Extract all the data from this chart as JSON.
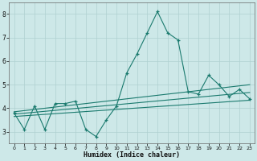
{
  "x": [
    0,
    1,
    2,
    3,
    4,
    5,
    6,
    7,
    8,
    9,
    10,
    11,
    12,
    13,
    14,
    15,
    16,
    17,
    18,
    19,
    20,
    21,
    22,
    23
  ],
  "y_main": [
    3.8,
    3.1,
    4.1,
    3.1,
    4.2,
    4.2,
    4.3,
    3.1,
    2.8,
    3.5,
    4.1,
    5.5,
    6.3,
    7.2,
    8.1,
    7.2,
    6.9,
    4.7,
    4.6,
    5.4,
    5.0,
    4.5,
    4.8,
    4.4
  ],
  "y_upper": [
    3.85,
    3.9,
    3.95,
    4.0,
    4.05,
    4.1,
    4.15,
    4.2,
    4.25,
    4.3,
    4.35,
    4.4,
    4.45,
    4.5,
    4.55,
    4.6,
    4.65,
    4.7,
    4.75,
    4.8,
    4.85,
    4.9,
    4.95,
    5.0
  ],
  "y_lower": [
    3.65,
    3.68,
    3.71,
    3.74,
    3.77,
    3.8,
    3.83,
    3.86,
    3.89,
    3.92,
    3.95,
    3.98,
    4.01,
    4.04,
    4.07,
    4.1,
    4.13,
    4.16,
    4.19,
    4.22,
    4.25,
    4.28,
    4.31,
    4.34
  ],
  "y_mid": [
    3.75,
    3.79,
    3.83,
    3.87,
    3.91,
    3.95,
    3.99,
    4.03,
    4.07,
    4.11,
    4.15,
    4.19,
    4.23,
    4.27,
    4.31,
    4.35,
    4.39,
    4.43,
    4.47,
    4.51,
    4.55,
    4.59,
    4.63,
    4.67
  ],
  "line_color": "#1a7a6e",
  "bg_color": "#cde8e8",
  "grid_color": "#afd0d0",
  "xlabel": "Humidex (Indice chaleur)",
  "ylim": [
    2.5,
    8.5
  ],
  "xlim": [
    -0.5,
    23.5
  ],
  "yticks": [
    3,
    4,
    5,
    6,
    7,
    8
  ],
  "xticks": [
    0,
    1,
    2,
    3,
    4,
    5,
    6,
    7,
    8,
    9,
    10,
    11,
    12,
    13,
    14,
    15,
    16,
    17,
    18,
    19,
    20,
    21,
    22,
    23
  ]
}
